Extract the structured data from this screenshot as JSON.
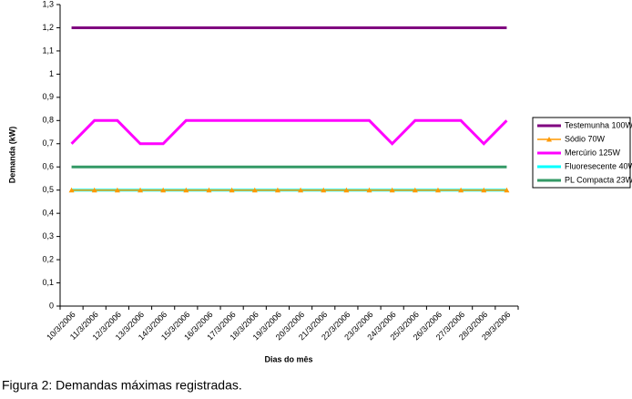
{
  "chart_data": {
    "type": "line",
    "y_label": "Demanda (kW)",
    "x_label": "Dias do mês",
    "caption": "Figura 2: Demandas máximas registradas.",
    "categories": [
      "10/3/2006",
      "11/3/2006",
      "12/3/2006",
      "13/3/2006",
      "14/3/2006",
      "15/3/2006",
      "16/3/2006",
      "17/3/2006",
      "18/3/2006",
      "19/3/2006",
      "20/3/2006",
      "21/3/2006",
      "22/3/2006",
      "23/3/2006",
      "24/3/2006",
      "25/3/2006",
      "26/3/2006",
      "27/3/2006",
      "28/3/2006",
      "29/3/2006"
    ],
    "series": [
      {
        "name": "Testemunha 100W",
        "color": "#800080",
        "values": [
          1.2,
          1.2,
          1.2,
          1.2,
          1.2,
          1.2,
          1.2,
          1.2,
          1.2,
          1.2,
          1.2,
          1.2,
          1.2,
          1.2,
          1.2,
          1.2,
          1.2,
          1.2,
          1.2,
          1.2
        ]
      },
      {
        "name": "Sódio 70W",
        "color": "#ff9900",
        "marker": "triangle",
        "values": [
          0.5,
          0.5,
          0.5,
          0.5,
          0.5,
          0.5,
          0.5,
          0.5,
          0.5,
          0.5,
          0.5,
          0.5,
          0.5,
          0.5,
          0.5,
          0.5,
          0.5,
          0.5,
          0.5,
          0.5
        ]
      },
      {
        "name": "Mercúrio 125W",
        "color": "#ff00ff",
        "values": [
          0.7,
          0.8,
          0.8,
          0.7,
          0.7,
          0.8,
          0.8,
          0.8,
          0.8,
          0.8,
          0.8,
          0.8,
          0.8,
          0.8,
          0.7,
          0.8,
          0.8,
          0.8,
          0.7,
          0.8
        ]
      },
      {
        "name": "Fluoresecente 40W",
        "color": "#00ffff",
        "values": [
          0.5,
          0.5,
          0.5,
          0.5,
          0.5,
          0.5,
          0.5,
          0.5,
          0.5,
          0.5,
          0.5,
          0.5,
          0.5,
          0.5,
          0.5,
          0.5,
          0.5,
          0.5,
          0.5,
          0.5
        ]
      },
      {
        "name": "PL Compacta 23W",
        "color": "#339966",
        "values": [
          0.6,
          0.6,
          0.6,
          0.6,
          0.6,
          0.6,
          0.6,
          0.6,
          0.6,
          0.6,
          0.6,
          0.6,
          0.6,
          0.6,
          0.6,
          0.6,
          0.6,
          0.6,
          0.6,
          0.6
        ]
      }
    ],
    "ylim": [
      0,
      1.3
    ],
    "yticks": [
      0,
      {
        "value": 0.1,
        "label": "0,1"
      },
      {
        "value": 0.2,
        "label": "0,2"
      },
      {
        "value": 0.3,
        "label": "0,3"
      },
      {
        "value": 0.4,
        "label": "0,4"
      },
      {
        "value": 0.5,
        "label": "0,5"
      },
      {
        "value": 0.6,
        "label": "0,6"
      },
      {
        "value": 0.7,
        "label": "0,7"
      },
      {
        "value": 0.8,
        "label": "0,8"
      },
      {
        "value": 0.9,
        "label": "0,9"
      },
      1,
      {
        "value": 1.1,
        "label": "1,1"
      },
      {
        "value": 1.2,
        "label": "1,2"
      },
      {
        "value": 1.3,
        "label": "1,3"
      }
    ],
    "grid": false,
    "legend": "right"
  }
}
